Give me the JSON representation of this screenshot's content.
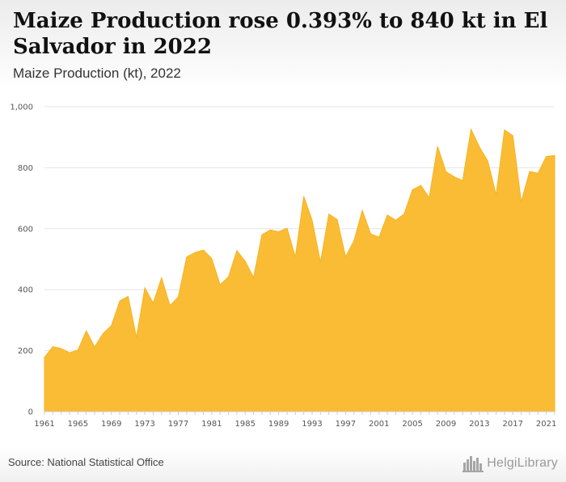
{
  "header": {
    "title": "Maize Production rose 0.393% to 840 kt in El Salvador in 2022",
    "subtitle": "Maize Production (kt), 2022"
  },
  "footer": {
    "source": "Source: National Statistical Office",
    "logo_text": "HelgiLibrary",
    "logo_icon": "city-skyline-icon"
  },
  "colors": {
    "area_fill": "#FBBC35",
    "area_stroke": "#F7B21E",
    "grid": "#e4e4e4",
    "axis": "#cccccc"
  },
  "chart_data": {
    "type": "area",
    "title": "Maize Production (kt), 2022",
    "xlabel": "",
    "ylabel": "",
    "ylim": [
      0,
      1000
    ],
    "yticks": [
      0,
      200,
      400,
      600,
      800,
      1000
    ],
    "ytick_labels": [
      "0",
      "200",
      "400",
      "600",
      "800",
      "1,000"
    ],
    "xticks": [
      1961,
      1965,
      1969,
      1973,
      1977,
      1981,
      1985,
      1989,
      1993,
      1997,
      2001,
      2005,
      2009,
      2013,
      2017,
      2021
    ],
    "grid": true,
    "x": [
      1961,
      1962,
      1963,
      1964,
      1965,
      1966,
      1967,
      1968,
      1969,
      1970,
      1971,
      1972,
      1973,
      1974,
      1975,
      1976,
      1977,
      1978,
      1979,
      1980,
      1981,
      1982,
      1983,
      1984,
      1985,
      1986,
      1987,
      1988,
      1989,
      1990,
      1991,
      1992,
      1993,
      1994,
      1995,
      1996,
      1997,
      1998,
      1999,
      2000,
      2001,
      2002,
      2003,
      2004,
      2005,
      2006,
      2007,
      2008,
      2009,
      2010,
      2011,
      2012,
      2013,
      2014,
      2015,
      2016,
      2017,
      2018,
      2019,
      2020,
      2021,
      2022
    ],
    "values": [
      178,
      213,
      207,
      193,
      202,
      265,
      212,
      256,
      282,
      363,
      378,
      243,
      406,
      356,
      439,
      348,
      376,
      507,
      522,
      530,
      502,
      416,
      442,
      528,
      493,
      440,
      580,
      596,
      590,
      602,
      507,
      706,
      628,
      490,
      648,
      630,
      508,
      560,
      660,
      583,
      572,
      645,
      628,
      648,
      728,
      742,
      702,
      870,
      787,
      770,
      758,
      926,
      868,
      822,
      711,
      924,
      905,
      688,
      788,
      782,
      837,
      840
    ]
  }
}
